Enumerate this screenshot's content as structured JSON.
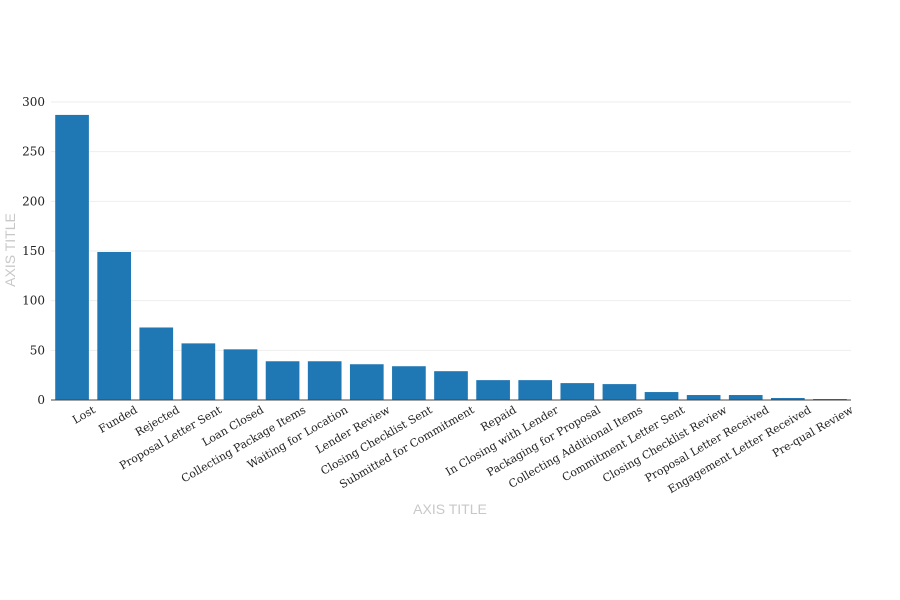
{
  "chart_data": {
    "type": "bar",
    "title": "",
    "xlabel": "AXIS TITLE",
    "ylabel": "AXIS TITLE",
    "ylim": [
      0,
      300
    ],
    "yticks": [
      0,
      50,
      100,
      150,
      200,
      250,
      300
    ],
    "grid": true,
    "bar_color": "#1f77b4",
    "categories": [
      "Lost",
      "Funded",
      "Rejected",
      "Proposal Letter Sent",
      "Loan Closed",
      "Collecting Package Items",
      "Waiting for Location",
      "Lender Review",
      "Closing Checklist Sent",
      "Submitted for Commitment",
      "Repaid",
      "In Closing with Lender",
      "Packaging for Proposal",
      "Collecting Additional Items",
      "Commitment Letter Sent",
      "Closing Checklist Review",
      "Proposal Letter Received",
      "Engagement Letter Received",
      "Pre-qual Review"
    ],
    "values": [
      287,
      149,
      73,
      57,
      51,
      39,
      39,
      36,
      34,
      29,
      20,
      20,
      17,
      16,
      8,
      5,
      5,
      2,
      1
    ]
  }
}
